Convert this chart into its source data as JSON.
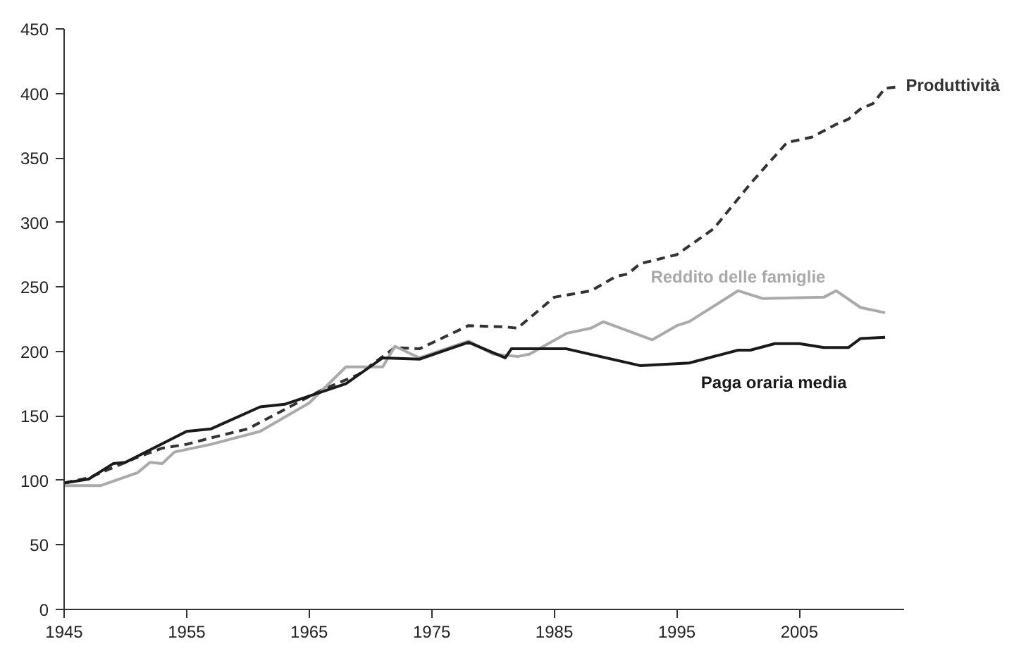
{
  "chart_data": {
    "type": "line",
    "xlim": [
      1945,
      2013.5
    ],
    "xticks": [
      1945,
      1955,
      1965,
      1975,
      1985,
      1995,
      2005
    ],
    "ylim": [
      0,
      450
    ],
    "yticks": [
      0,
      50,
      100,
      150,
      200,
      250,
      300,
      350,
      400,
      450
    ],
    "grid": false,
    "legend": false,
    "series": [
      {
        "name": "Produttività",
        "color": "#333333",
        "line_style": "dashed",
        "x": [
          1945,
          1947,
          1949,
          1951,
          1953,
          1955,
          1957,
          1960,
          1963,
          1966,
          1969,
          1972,
          1974,
          1978,
          1981,
          1982,
          1985,
          1988,
          1990,
          1991,
          1992,
          1995,
          1998,
          2001,
          2004,
          2006,
          2008,
          2009,
          2010,
          2011,
          2012,
          2013
        ],
        "values": [
          98,
          102,
          110,
          118,
          125,
          128,
          133,
          140,
          155,
          170,
          182,
          203,
          202,
          220,
          219,
          218,
          242,
          247,
          258,
          260,
          268,
          275,
          295,
          330,
          362,
          366,
          376,
          380,
          388,
          392,
          404,
          405
        ]
      },
      {
        "name": "Reddito delle famiglie",
        "color": "#aaaaaa",
        "line_style": "solid",
        "x": [
          1945,
          1948,
          1951,
          1952,
          1953,
          1954,
          1957,
          1961,
          1965,
          1968,
          1970,
          1971,
          1972,
          1974,
          1978,
          1980,
          1982,
          1983,
          1986,
          1988,
          1989,
          1993,
          1995,
          1996,
          2000,
          2002,
          2007,
          2008,
          2010,
          2012
        ],
        "values": [
          96,
          96,
          106,
          114,
          113,
          122,
          128,
          138,
          160,
          188,
          188,
          188,
          204,
          195,
          208,
          198,
          196,
          198,
          214,
          218,
          223,
          209,
          220,
          223,
          247,
          241,
          242,
          247,
          234,
          230
        ]
      },
      {
        "name": "Paga oraria media",
        "color": "#1a1a1a",
        "line_style": "solid",
        "x": [
          1945,
          1947,
          1949,
          1950,
          1955,
          1957,
          1961,
          1963,
          1968,
          1971,
          1974,
          1978,
          1981,
          1981.5,
          1986,
          1992,
          1996,
          2000,
          2001,
          2003,
          2005,
          2007,
          2009,
          2010,
          2012
        ],
        "values": [
          98,
          101,
          113,
          114,
          138,
          140,
          157,
          159,
          175,
          195,
          194,
          207,
          195,
          202,
          202,
          189,
          191,
          201,
          201,
          206,
          206,
          203,
          203,
          210,
          211
        ]
      }
    ]
  }
}
